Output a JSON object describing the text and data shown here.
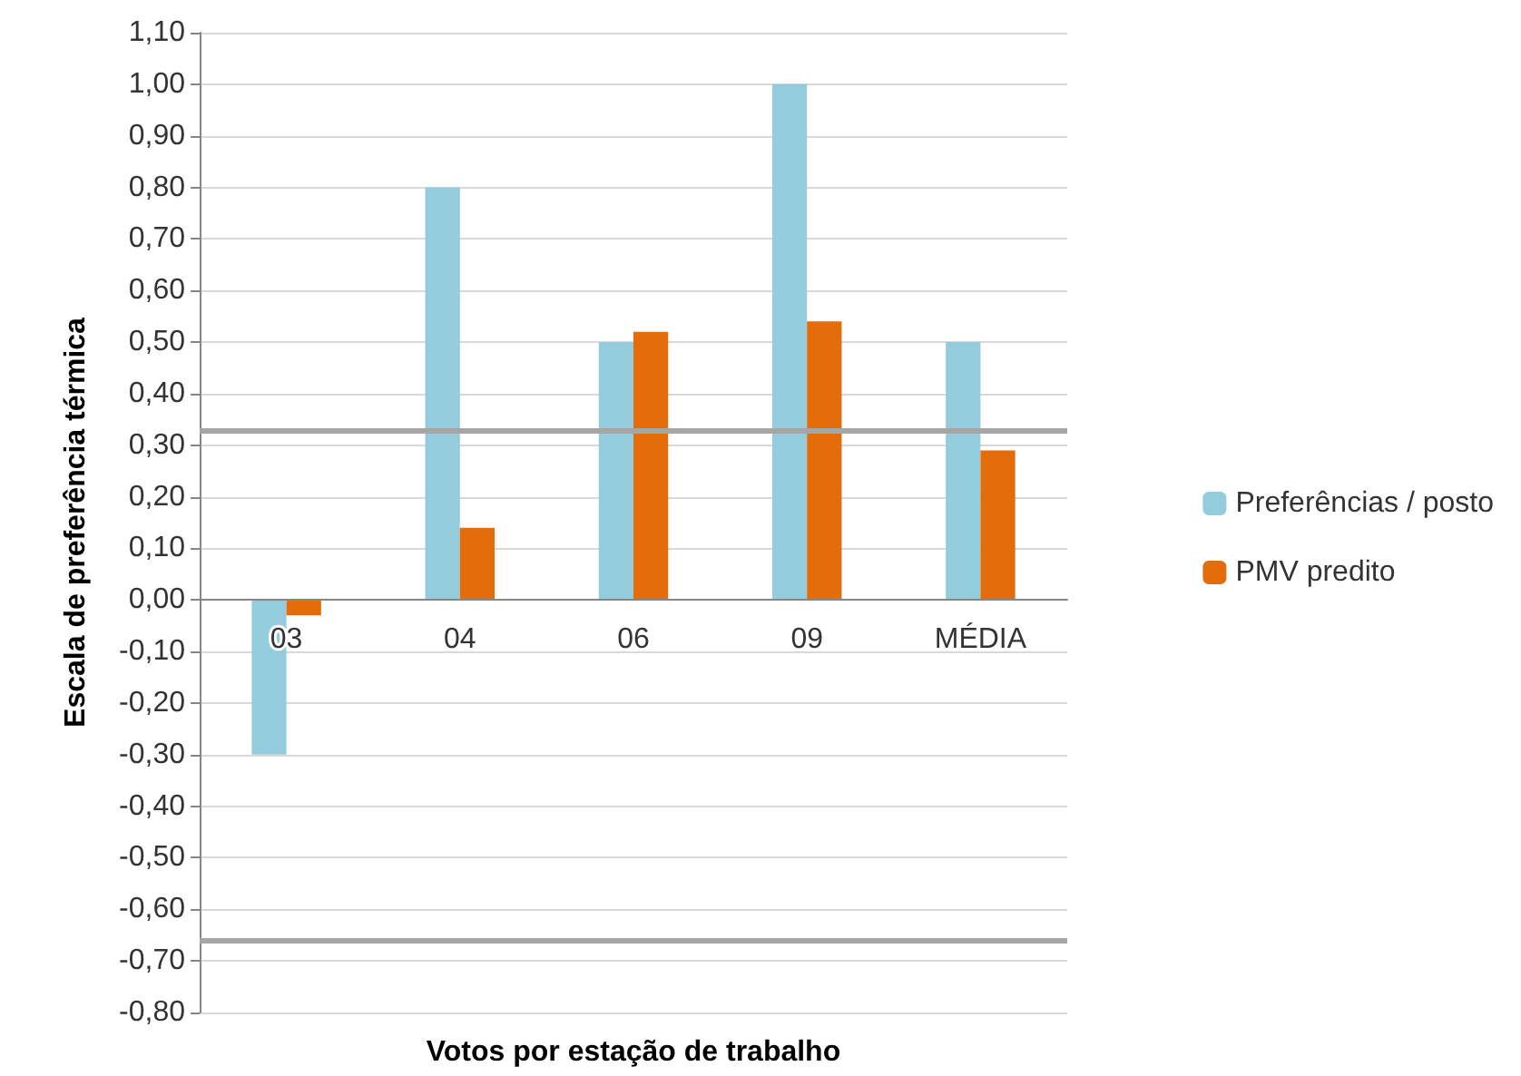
{
  "chart_data": {
    "type": "bar",
    "xlabel": "Votos por estação de trabalho",
    "ylabel": "Escala de preferência térmica",
    "categories": [
      "03",
      "04",
      "06",
      "09",
      "MÉDIA"
    ],
    "series": [
      {
        "name": "Preferências / posto",
        "color": "#93cddd",
        "values": [
          -0.3,
          0.8,
          0.5,
          1.0,
          0.5
        ]
      },
      {
        "name": "PMV predito",
        "color": "#e46c0a",
        "values": [
          -0.03,
          0.14,
          0.52,
          0.54,
          0.29
        ]
      }
    ],
    "ylim": [
      -0.8,
      1.1
    ],
    "yticks": [
      {
        "value": -0.8,
        "label": "-0,80"
      },
      {
        "value": -0.7,
        "label": "-0,70"
      },
      {
        "value": -0.6,
        "label": "-0,60"
      },
      {
        "value": -0.5,
        "label": "-0,50"
      },
      {
        "value": -0.4,
        "label": "-0,40"
      },
      {
        "value": -0.3,
        "label": "-0,30"
      },
      {
        "value": -0.2,
        "label": "-0,20"
      },
      {
        "value": -0.1,
        "label": "-0,10"
      },
      {
        "value": 0,
        "label": "0,00"
      },
      {
        "value": 0.1,
        "label": "0,10"
      },
      {
        "value": 0.2,
        "label": "0,20"
      },
      {
        "value": 0.3,
        "label": "0,30"
      },
      {
        "value": 0.4,
        "label": "0,40"
      },
      {
        "value": 0.5,
        "label": "0,50"
      },
      {
        "value": 0.6,
        "label": "0,60"
      },
      {
        "value": 0.7,
        "label": "0,70"
      },
      {
        "value": 0.8,
        "label": "0,80"
      },
      {
        "value": 0.9,
        "label": "0,90"
      },
      {
        "value": 1.0,
        "label": "1,00"
      },
      {
        "value": 1.1,
        "label": "1,10"
      }
    ],
    "ref_lines": [
      {
        "axis": "y",
        "value": 0.33,
        "color": "#a6a6a6"
      },
      {
        "axis": "y",
        "value": -0.66,
        "color": "#a6a6a6"
      }
    ],
    "grid": "y",
    "legend": "right"
  }
}
